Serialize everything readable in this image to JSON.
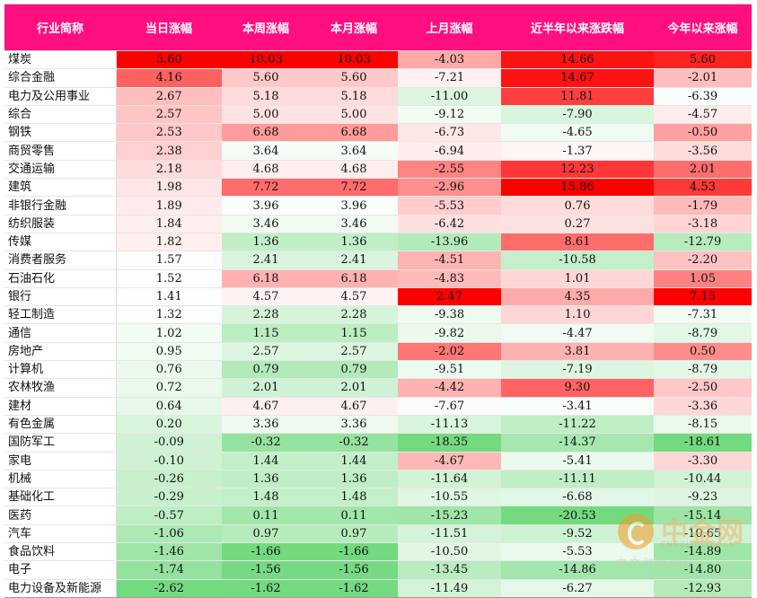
{
  "table": {
    "headers": [
      "行业简称",
      "当日涨幅",
      "本周涨幅",
      "本月涨幅",
      "上月涨幅",
      "近半年以来涨跌幅",
      "今年以来涨幅"
    ],
    "rows": [
      [
        "煤炭",
        "5.60",
        "10.03",
        "10.03",
        "-4.03",
        "14.66",
        "5.60"
      ],
      [
        "综合金融",
        "4.16",
        "5.60",
        "5.60",
        "-7.21",
        "14.67",
        "-2.01"
      ],
      [
        "电力及公用事业",
        "2.67",
        "5.18",
        "5.18",
        "-11.00",
        "11.81",
        "-6.39"
      ],
      [
        "综合",
        "2.57",
        "5.00",
        "5.00",
        "-9.12",
        "-7.90",
        "-4.57"
      ],
      [
        "钢铁",
        "2.53",
        "6.68",
        "6.68",
        "-6.73",
        "-4.65",
        "-0.50"
      ],
      [
        "商贸零售",
        "2.38",
        "3.64",
        "3.64",
        "-6.94",
        "-1.37",
        "-3.56"
      ],
      [
        "交通运输",
        "2.18",
        "4.68",
        "4.68",
        "-2.55",
        "12.23",
        "2.01"
      ],
      [
        "建筑",
        "1.98",
        "7.72",
        "7.72",
        "-2.96",
        "15.86",
        "4.53"
      ],
      [
        "非银行金融",
        "1.89",
        "3.96",
        "3.96",
        "-5.53",
        "0.76",
        "-1.79"
      ],
      [
        "纺织服装",
        "1.84",
        "3.46",
        "3.46",
        "-6.42",
        "0.27",
        "-3.18"
      ],
      [
        "传媒",
        "1.82",
        "1.36",
        "1.36",
        "-13.96",
        "8.61",
        "-12.79"
      ],
      [
        "消费者服务",
        "1.57",
        "2.41",
        "2.41",
        "-4.51",
        "-10.58",
        "-2.20"
      ],
      [
        "石油石化",
        "1.52",
        "6.18",
        "6.18",
        "-4.83",
        "1.01",
        "1.05"
      ],
      [
        "银行",
        "1.41",
        "4.57",
        "4.57",
        "2.47",
        "4.35",
        "7.15"
      ],
      [
        "轻工制造",
        "1.32",
        "2.28",
        "2.28",
        "-9.38",
        "1.10",
        "-7.31"
      ],
      [
        "通信",
        "1.02",
        "1.15",
        "1.15",
        "-9.82",
        "-4.47",
        "-8.79"
      ],
      [
        "房地产",
        "0.95",
        "2.57",
        "2.57",
        "-2.02",
        "3.81",
        "0.50"
      ],
      [
        "计算机",
        "0.76",
        "0.79",
        "0.79",
        "-9.51",
        "-7.19",
        "-8.79"
      ],
      [
        "农林牧渔",
        "0.72",
        "2.01",
        "2.01",
        "-4.42",
        "9.30",
        "-2.50"
      ],
      [
        "建材",
        "0.64",
        "4.67",
        "4.67",
        "-7.67",
        "-3.41",
        "-3.36"
      ],
      [
        "有色金属",
        "0.20",
        "3.36",
        "3.36",
        "-11.13",
        "-11.22",
        "-8.15"
      ],
      [
        "国防军工",
        "-0.09",
        "-0.32",
        "-0.32",
        "-18.35",
        "-14.37",
        "-18.61"
      ],
      [
        "家电",
        "-0.10",
        "1.44",
        "1.44",
        "-4.67",
        "-5.41",
        "-3.30"
      ],
      [
        "机械",
        "-0.26",
        "1.36",
        "1.36",
        "-11.64",
        "-11.11",
        "-10.44"
      ],
      [
        "基础化工",
        "-0.29",
        "1.48",
        "1.48",
        "-10.55",
        "-6.68",
        "-9.23"
      ],
      [
        "医药",
        "-0.57",
        "0.11",
        "0.11",
        "-15.23",
        "-20.53",
        "-15.14"
      ],
      [
        "汽车",
        "-1.06",
        "0.97",
        "0.97",
        "-11.51",
        "-9.52",
        "-10.65"
      ],
      [
        "食品饮料",
        "-1.46",
        "-1.66",
        "-1.66",
        "-10.50",
        "-5.53",
        "-14.89"
      ],
      [
        "电子",
        "-1.74",
        "-1.56",
        "-1.56",
        "-13.45",
        "-14.86",
        "-14.80"
      ],
      [
        "电力设备及新能源",
        "-2.62",
        "-1.62",
        "-1.62",
        "-11.49",
        "-6.27",
        "-12.93"
      ]
    ]
  },
  "colors": {
    "header_bg": "#ff0f7f",
    "positive_max": "#ff0000",
    "neutral": "#ffffff",
    "negative_max": "#5ad36a"
  },
  "watermark": {
    "brand": "中金网",
    "domain": "CNGOLD.COM.CN",
    "slogan": "中文财经媒体"
  }
}
